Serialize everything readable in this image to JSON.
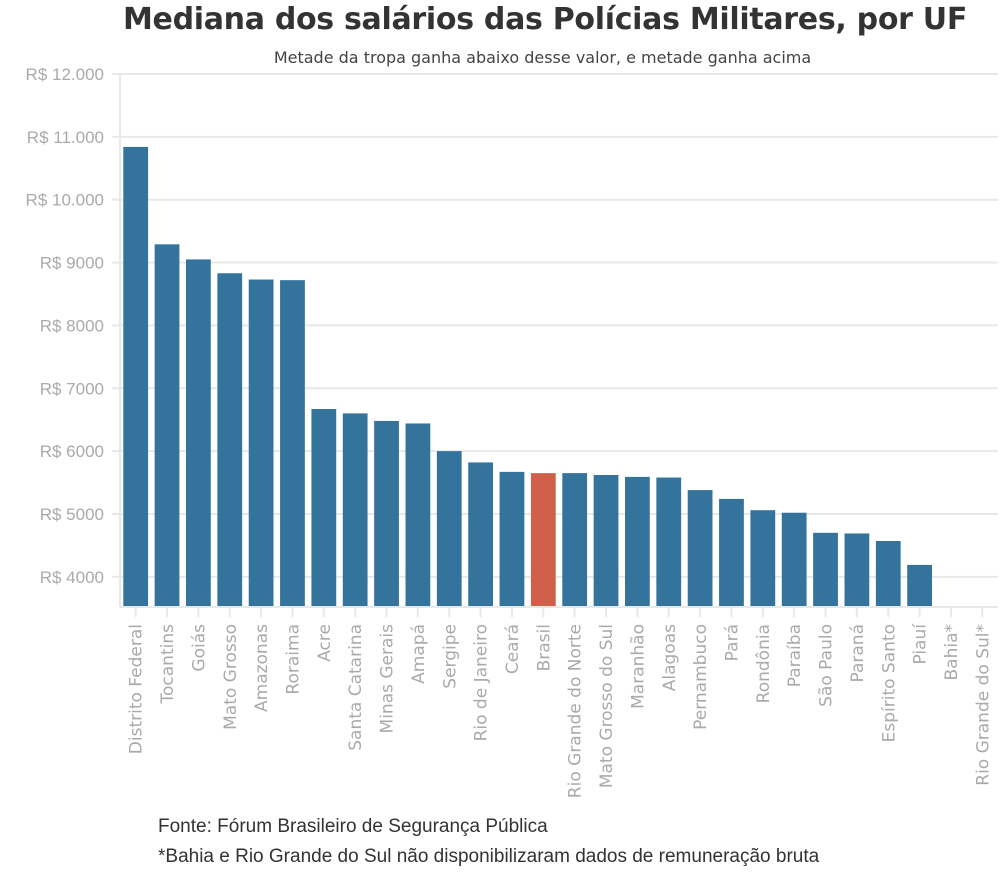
{
  "chart_data": {
    "type": "bar",
    "title": "Mediana dos salários das Polícias Militares, por UF",
    "subtitle": "Metade da tropa ganha abaixo desse valor, e metade ganha acima",
    "xlabel": "",
    "ylabel": "",
    "ylim": [
      3520,
      12000
    ],
    "yticks": [
      4000,
      5000,
      6000,
      7000,
      8000,
      9000,
      10000,
      11000,
      12000
    ],
    "ytick_labels": [
      "R$ 4000",
      "R$ 5000",
      "R$ 6000",
      "R$ 7000",
      "R$ 8000",
      "R$ 9000",
      "R$ 10.000",
      "R$ 11.000",
      "R$ 12.000"
    ],
    "grid": true,
    "legend": "none",
    "categories": [
      "Distrito Federal",
      "Tocantins",
      "Goiás",
      "Mato Grosso",
      "Amazonas",
      "Roraima",
      "Acre",
      "Santa Catarina",
      "Minas Gerais",
      "Amapá",
      "Sergipe",
      "Rio de Janeiro",
      "Ceará",
      "Brasil",
      "Rio Grande do Norte",
      "Mato Grosso do Sul",
      "Maranhão",
      "Alagoas",
      "Pernambuco",
      "Pará",
      "Rondônia",
      "Paraíba",
      "São Paulo",
      "Paraná",
      "Espírito Santo",
      "Piauí",
      "Bahia*",
      "Rio Grande do Sul*"
    ],
    "values": [
      10840,
      9290,
      9050,
      8830,
      8730,
      8720,
      6670,
      6600,
      6480,
      6440,
      6000,
      5820,
      5670,
      5650,
      5650,
      5620,
      5590,
      5580,
      5380,
      5240,
      5060,
      5020,
      4700,
      4690,
      4570,
      4190,
      null,
      null
    ],
    "highlight_category": "Brasil",
    "colors": {
      "bar": "#33739c",
      "highlight": "#d0604a",
      "grid": "#e8e8e8",
      "tick_label": "#aaaaaa",
      "category_label": "#aaaaaa"
    }
  },
  "footer": {
    "source": "Fonte: Fórum Brasileiro de Segurança Pública",
    "note": "*Bahia e Rio Grande do Sul não disponibilizaram dados de remuneração bruta"
  }
}
